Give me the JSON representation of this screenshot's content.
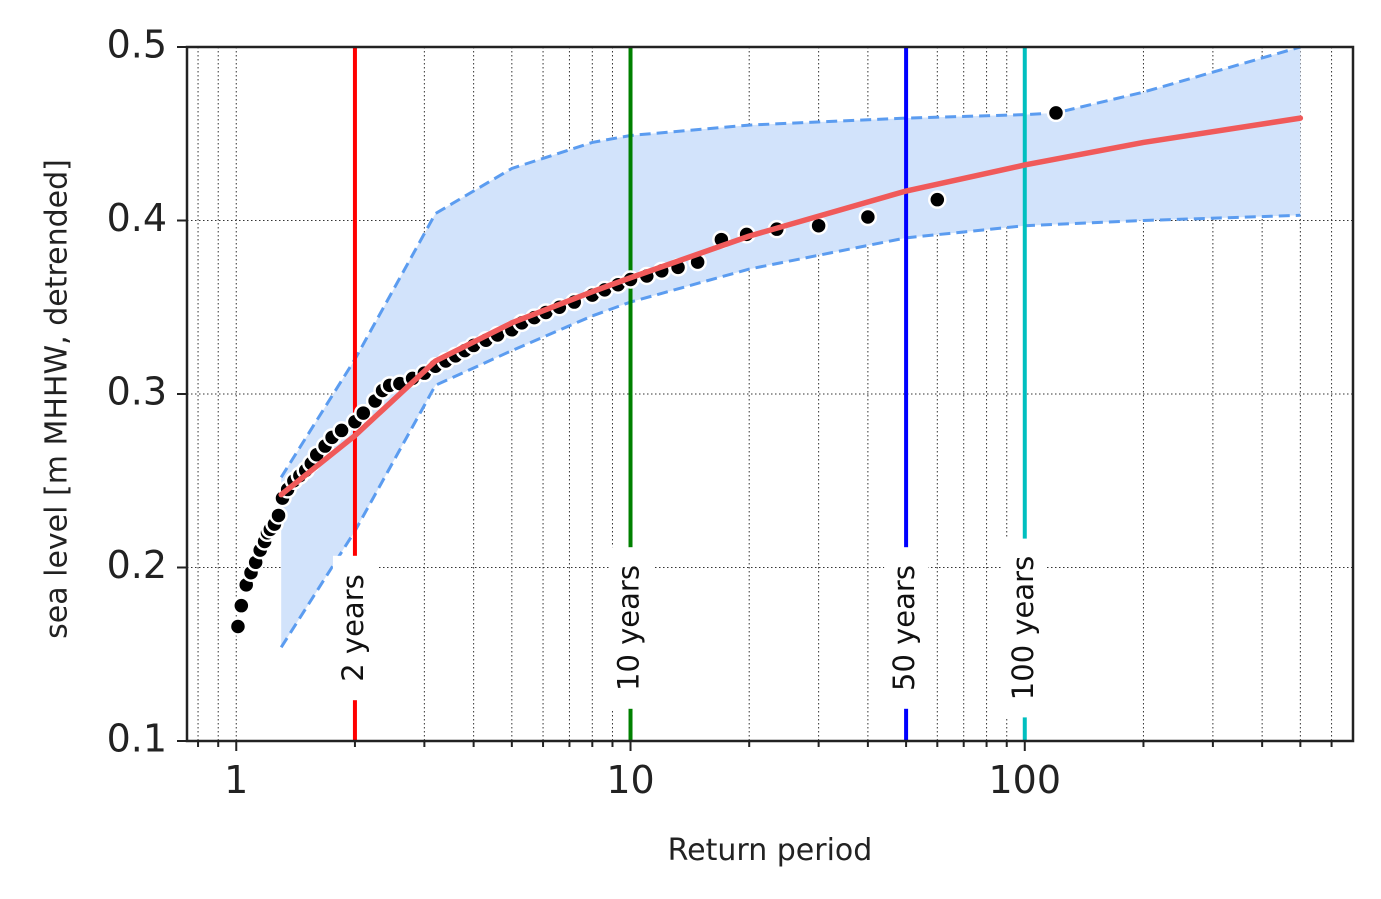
{
  "chart_data": {
    "type": "scatter",
    "title": "",
    "xlabel": "Return period",
    "ylabel": "sea level [m MHHW, detrended]",
    "x_scale": "log",
    "xlim": [
      0.75,
      680
    ],
    "ylim": [
      0.1,
      0.5
    ],
    "x_ticks": [
      1,
      10,
      100
    ],
    "x_tick_labels": [
      "1",
      "10",
      "100"
    ],
    "y_ticks": [
      0.1,
      0.2,
      0.3,
      0.4,
      0.5
    ],
    "y_tick_labels": [
      "0.1",
      "0.2",
      "0.3",
      "0.4",
      "0.5"
    ],
    "grid": true,
    "colors": {
      "points": "#000000",
      "fit_line": "#f05a5a",
      "ci_fill": "#d2e3fb",
      "ci_line": "#5b9cf0",
      "rp_2": "#ff0000",
      "rp_10": "#008000",
      "rp_50": "#0000ff",
      "rp_100": "#00bfbf"
    },
    "return_period_lines": [
      {
        "x": 2,
        "label": "2 years",
        "color": "#ff0000"
      },
      {
        "x": 10,
        "label": "10 years",
        "color": "#008000"
      },
      {
        "x": 50,
        "label": "50 years",
        "color": "#0000ff"
      },
      {
        "x": 100,
        "label": "100 years",
        "color": "#00bfbf"
      }
    ],
    "fit": {
      "x": [
        1.3,
        2,
        3.2,
        5,
        8,
        10,
        20,
        50,
        100,
        200,
        500
      ],
      "y": [
        0.242,
        0.276,
        0.319,
        0.341,
        0.359,
        0.367,
        0.391,
        0.417,
        0.432,
        0.445,
        0.459
      ]
    },
    "ci_upper": {
      "x": [
        1.3,
        2,
        3.2,
        5,
        8,
        10,
        20,
        50,
        100,
        120,
        200,
        500
      ],
      "y": [
        0.252,
        0.32,
        0.404,
        0.43,
        0.445,
        0.449,
        0.455,
        0.459,
        0.461,
        0.462,
        0.474,
        0.5
      ]
    },
    "ci_lower": {
      "x": [
        1.3,
        2,
        3.2,
        5,
        8,
        10,
        20,
        50,
        100,
        200,
        500
      ],
      "y": [
        0.154,
        0.221,
        0.305,
        0.325,
        0.345,
        0.353,
        0.372,
        0.39,
        0.397,
        0.4,
        0.403
      ]
    },
    "points": {
      "x": [
        1.01,
        1.03,
        1.06,
        1.09,
        1.12,
        1.15,
        1.18,
        1.2,
        1.22,
        1.25,
        1.28,
        1.31,
        1.35,
        1.4,
        1.45,
        1.5,
        1.55,
        1.6,
        1.68,
        1.75,
        1.85,
        2.0,
        2.1,
        2.25,
        2.35,
        2.45,
        2.6,
        2.8,
        3.0,
        3.2,
        3.4,
        3.6,
        3.8,
        4.0,
        4.3,
        4.6,
        5.0,
        5.3,
        5.7,
        6.1,
        6.6,
        7.2,
        8.0,
        8.6,
        9.3,
        10.0,
        11.0,
        12.0,
        13.2,
        14.8,
        17.0,
        19.7,
        23.5,
        30.0,
        40.0,
        60.0,
        120.0
      ],
      "y": [
        0.166,
        0.178,
        0.19,
        0.197,
        0.203,
        0.21,
        0.215,
        0.22,
        0.222,
        0.225,
        0.23,
        0.24,
        0.245,
        0.25,
        0.253,
        0.256,
        0.26,
        0.265,
        0.27,
        0.275,
        0.279,
        0.284,
        0.289,
        0.296,
        0.302,
        0.305,
        0.306,
        0.309,
        0.312,
        0.316,
        0.319,
        0.322,
        0.325,
        0.328,
        0.331,
        0.334,
        0.337,
        0.341,
        0.344,
        0.347,
        0.35,
        0.353,
        0.357,
        0.36,
        0.363,
        0.366,
        0.368,
        0.371,
        0.373,
        0.376,
        0.389,
        0.392,
        0.395,
        0.397,
        0.402,
        0.412,
        0.462
      ]
    }
  }
}
